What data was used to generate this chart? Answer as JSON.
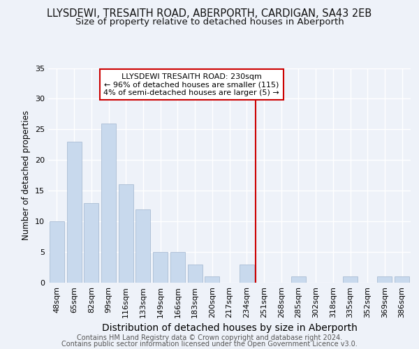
{
  "title": "LLYSDEWI, TRESAITH ROAD, ABERPORTH, CARDIGAN, SA43 2EB",
  "subtitle": "Size of property relative to detached houses in Aberporth",
  "xlabel": "Distribution of detached houses by size in Aberporth",
  "ylabel": "Number of detached properties",
  "categories": [
    "48sqm",
    "65sqm",
    "82sqm",
    "99sqm",
    "116sqm",
    "133sqm",
    "149sqm",
    "166sqm",
    "183sqm",
    "200sqm",
    "217sqm",
    "234sqm",
    "251sqm",
    "268sqm",
    "285sqm",
    "302sqm",
    "318sqm",
    "335sqm",
    "352sqm",
    "369sqm",
    "386sqm"
  ],
  "values": [
    10,
    23,
    13,
    26,
    16,
    12,
    5,
    5,
    3,
    1,
    0,
    3,
    0,
    0,
    1,
    0,
    0,
    1,
    0,
    1,
    1
  ],
  "bar_color": "#c8d9ed",
  "bar_edgecolor": "#aabdd4",
  "background_color": "#eef2f9",
  "grid_color": "#ffffff",
  "vline_x": 11.5,
  "vline_color": "#cc0000",
  "annotation_text": "LLYSDEWI TRESAITH ROAD: 230sqm\n← 96% of detached houses are smaller (115)\n4% of semi-detached houses are larger (5) →",
  "annotation_box_facecolor": "#ffffff",
  "annotation_box_edgecolor": "#cc0000",
  "ylim": [
    0,
    35
  ],
  "yticks": [
    0,
    5,
    10,
    15,
    20,
    25,
    30,
    35
  ],
  "footer1": "Contains HM Land Registry data © Crown copyright and database right 2024.",
  "footer2": "Contains public sector information licensed under the Open Government Licence v3.0.",
  "title_fontsize": 10.5,
  "subtitle_fontsize": 9.5,
  "xlabel_fontsize": 10,
  "ylabel_fontsize": 8.5,
  "tick_fontsize": 8,
  "annotation_fontsize": 8,
  "footer_fontsize": 7
}
